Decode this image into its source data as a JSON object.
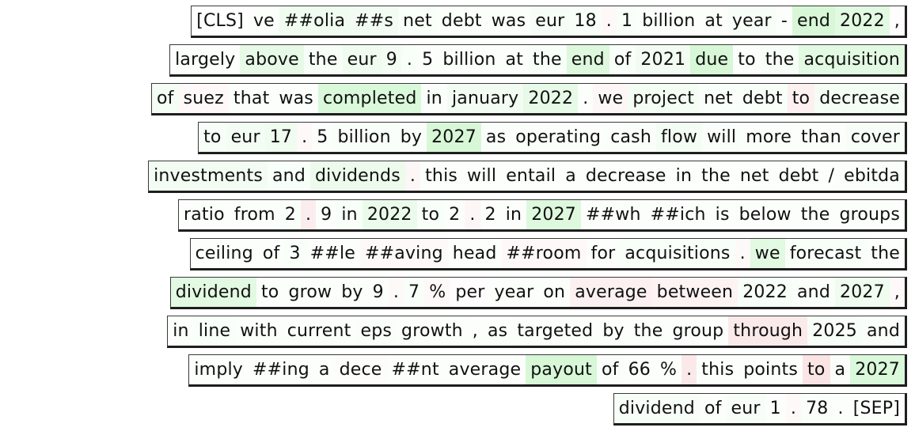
{
  "lines": [
    {
      "tokens": [
        [
          "[CLS]",
          0
        ],
        [
          "ve",
          0.03
        ],
        [
          "##olia",
          0.12
        ],
        [
          "##s",
          0.1
        ],
        [
          "net",
          0.05
        ],
        [
          "debt",
          0.03
        ],
        [
          "was",
          0.02
        ],
        [
          "eur",
          0.07
        ],
        [
          "18",
          0.05
        ],
        [
          ".",
          -0.05
        ],
        [
          "1",
          0.05
        ],
        [
          "billion",
          0.02
        ],
        [
          "at",
          0.03
        ],
        [
          "year",
          0.06
        ],
        [
          "-",
          0.02
        ],
        [
          "end",
          0.3
        ],
        [
          "2022",
          0.22
        ],
        [
          ",",
          -0.02
        ]
      ]
    },
    {
      "tokens": [
        [
          "largely",
          0.03
        ],
        [
          "above",
          0.18
        ],
        [
          "the",
          0.06
        ],
        [
          "eur",
          0.12
        ],
        [
          "9",
          0.08
        ],
        [
          ".",
          0.05
        ],
        [
          "5",
          0.02
        ],
        [
          "billion",
          0.03
        ],
        [
          "at",
          0.03
        ],
        [
          "the",
          0.05
        ],
        [
          "end",
          0.25
        ],
        [
          "of",
          0.05
        ],
        [
          "2021",
          0.1
        ],
        [
          "due",
          0.3
        ],
        [
          "to",
          0.02
        ],
        [
          "the",
          0.06
        ],
        [
          "acquisition",
          0.22
        ]
      ]
    },
    {
      "tokens": [
        [
          "of",
          0.08
        ],
        [
          "suez",
          -0.05
        ],
        [
          "that",
          0.03
        ],
        [
          "was",
          0.03
        ],
        [
          "completed",
          0.28
        ],
        [
          "in",
          0.04
        ],
        [
          "january",
          0.1
        ],
        [
          "2022",
          0.18
        ],
        [
          ".",
          0.03
        ],
        [
          "we",
          -0.06
        ],
        [
          "project",
          0.08
        ],
        [
          "net",
          0.04
        ],
        [
          "debt",
          0.05
        ],
        [
          "to",
          -0.1
        ],
        [
          "decrease",
          0.08
        ]
      ]
    },
    {
      "tokens": [
        [
          "to",
          0.06
        ],
        [
          "eur",
          0.08
        ],
        [
          "17",
          0.12
        ],
        [
          ".",
          -0.05
        ],
        [
          "5",
          0.03
        ],
        [
          "billion",
          0.05
        ],
        [
          "by",
          0.04
        ],
        [
          "2027",
          0.3
        ],
        [
          "as",
          0.04
        ],
        [
          "operating",
          0.03
        ],
        [
          "cash",
          0.04
        ],
        [
          "flow",
          0.08
        ],
        [
          "will",
          0.04
        ],
        [
          "more",
          0.03
        ],
        [
          "than",
          0.03
        ],
        [
          "cover",
          0.06
        ]
      ]
    },
    {
      "tokens": [
        [
          "investments",
          0.1
        ],
        [
          "and",
          0.05
        ],
        [
          "dividends",
          0.14
        ],
        [
          ".",
          -0.06
        ],
        [
          "this",
          0.02
        ],
        [
          "will",
          0.02
        ],
        [
          "entail",
          0.02
        ],
        [
          "a",
          0.02
        ],
        [
          "decrease",
          0.02
        ],
        [
          "in",
          0.02
        ],
        [
          "the",
          0.02
        ],
        [
          "net",
          0.03
        ],
        [
          "debt",
          0.02
        ],
        [
          "/",
          0.02
        ],
        [
          "ebitda",
          0.04
        ]
      ]
    },
    {
      "tokens": [
        [
          "ratio",
          0.03
        ],
        [
          "from",
          0.02
        ],
        [
          "2",
          0.04
        ],
        [
          ".",
          -0.12
        ],
        [
          "9",
          0.03
        ],
        [
          "in",
          0.05
        ],
        [
          "2022",
          0.15
        ],
        [
          "to",
          0.05
        ],
        [
          "2",
          0.03
        ],
        [
          ".",
          -0.06
        ],
        [
          "2",
          0.03
        ],
        [
          "in",
          0.03
        ],
        [
          "2027",
          0.25
        ],
        [
          "##wh",
          0.03
        ],
        [
          "##ich",
          0.03
        ],
        [
          "is",
          0.02
        ],
        [
          "below",
          0.02
        ],
        [
          "the",
          0.02
        ],
        [
          "groups",
          0.03
        ]
      ]
    },
    {
      "tokens": [
        [
          "ceiling",
          0.03
        ],
        [
          "of",
          0.02
        ],
        [
          "3",
          0.05
        ],
        [
          "##le",
          0.03
        ],
        [
          "##aving",
          -0.04
        ],
        [
          "head",
          0.02
        ],
        [
          "##room",
          -0.05
        ],
        [
          "for",
          0.03
        ],
        [
          "acquisitions",
          0.05
        ],
        [
          ".",
          -0.04
        ],
        [
          "we",
          0.22
        ],
        [
          "forecast",
          0.05
        ],
        [
          "the",
          0.03
        ]
      ]
    },
    {
      "tokens": [
        [
          "dividend",
          0.22
        ],
        [
          "to",
          0.03
        ],
        [
          "grow",
          0.02
        ],
        [
          "by",
          0.02
        ],
        [
          "9",
          0.03
        ],
        [
          ".",
          -0.04
        ],
        [
          "7",
          0.05
        ],
        [
          "%",
          -0.05
        ],
        [
          "per",
          -0.02
        ],
        [
          "year",
          0.02
        ],
        [
          "on",
          0.02
        ],
        [
          "average",
          -0.1
        ],
        [
          "between",
          -0.08
        ],
        [
          "2022",
          0.06
        ],
        [
          "and",
          0.04
        ],
        [
          "2027",
          0.12
        ],
        [
          ",",
          -0.05
        ]
      ]
    },
    {
      "tokens": [
        [
          "in",
          0.03
        ],
        [
          "line",
          0.05
        ],
        [
          "with",
          0.03
        ],
        [
          "current",
          0.03
        ],
        [
          "eps",
          0.04
        ],
        [
          "growth",
          0.03
        ],
        [
          ",",
          0.02
        ],
        [
          "as",
          0.02
        ],
        [
          "targeted",
          0.03
        ],
        [
          "by",
          0.02
        ],
        [
          "the",
          0.02
        ],
        [
          "group",
          0.02
        ],
        [
          "through",
          -0.14
        ],
        [
          "2025",
          0.06
        ],
        [
          "and",
          0.04
        ]
      ]
    },
    {
      "tokens": [
        [
          "imply",
          0.02
        ],
        [
          "##ing",
          0.03
        ],
        [
          "a",
          0.02
        ],
        [
          "dece",
          -0.03
        ],
        [
          "##nt",
          0.02
        ],
        [
          "average",
          0.02
        ],
        [
          "payout",
          0.3
        ],
        [
          "of",
          0.04
        ],
        [
          "66",
          0.03
        ],
        [
          "%",
          0.02
        ],
        [
          ".",
          -0.15
        ],
        [
          "this",
          0.02
        ],
        [
          "points",
          0.02
        ],
        [
          "to",
          -0.18
        ],
        [
          "a",
          0.04
        ],
        [
          "2027",
          0.28
        ]
      ]
    },
    {
      "tokens": [
        [
          "dividend",
          0.06
        ],
        [
          "of",
          0.03
        ],
        [
          "eur",
          0.06
        ],
        [
          "1",
          0.02
        ],
        [
          ".",
          -0.05
        ],
        [
          "78",
          0.04
        ],
        [
          ".",
          0.03
        ],
        [
          "[SEP]",
          0.02
        ]
      ]
    }
  ]
}
